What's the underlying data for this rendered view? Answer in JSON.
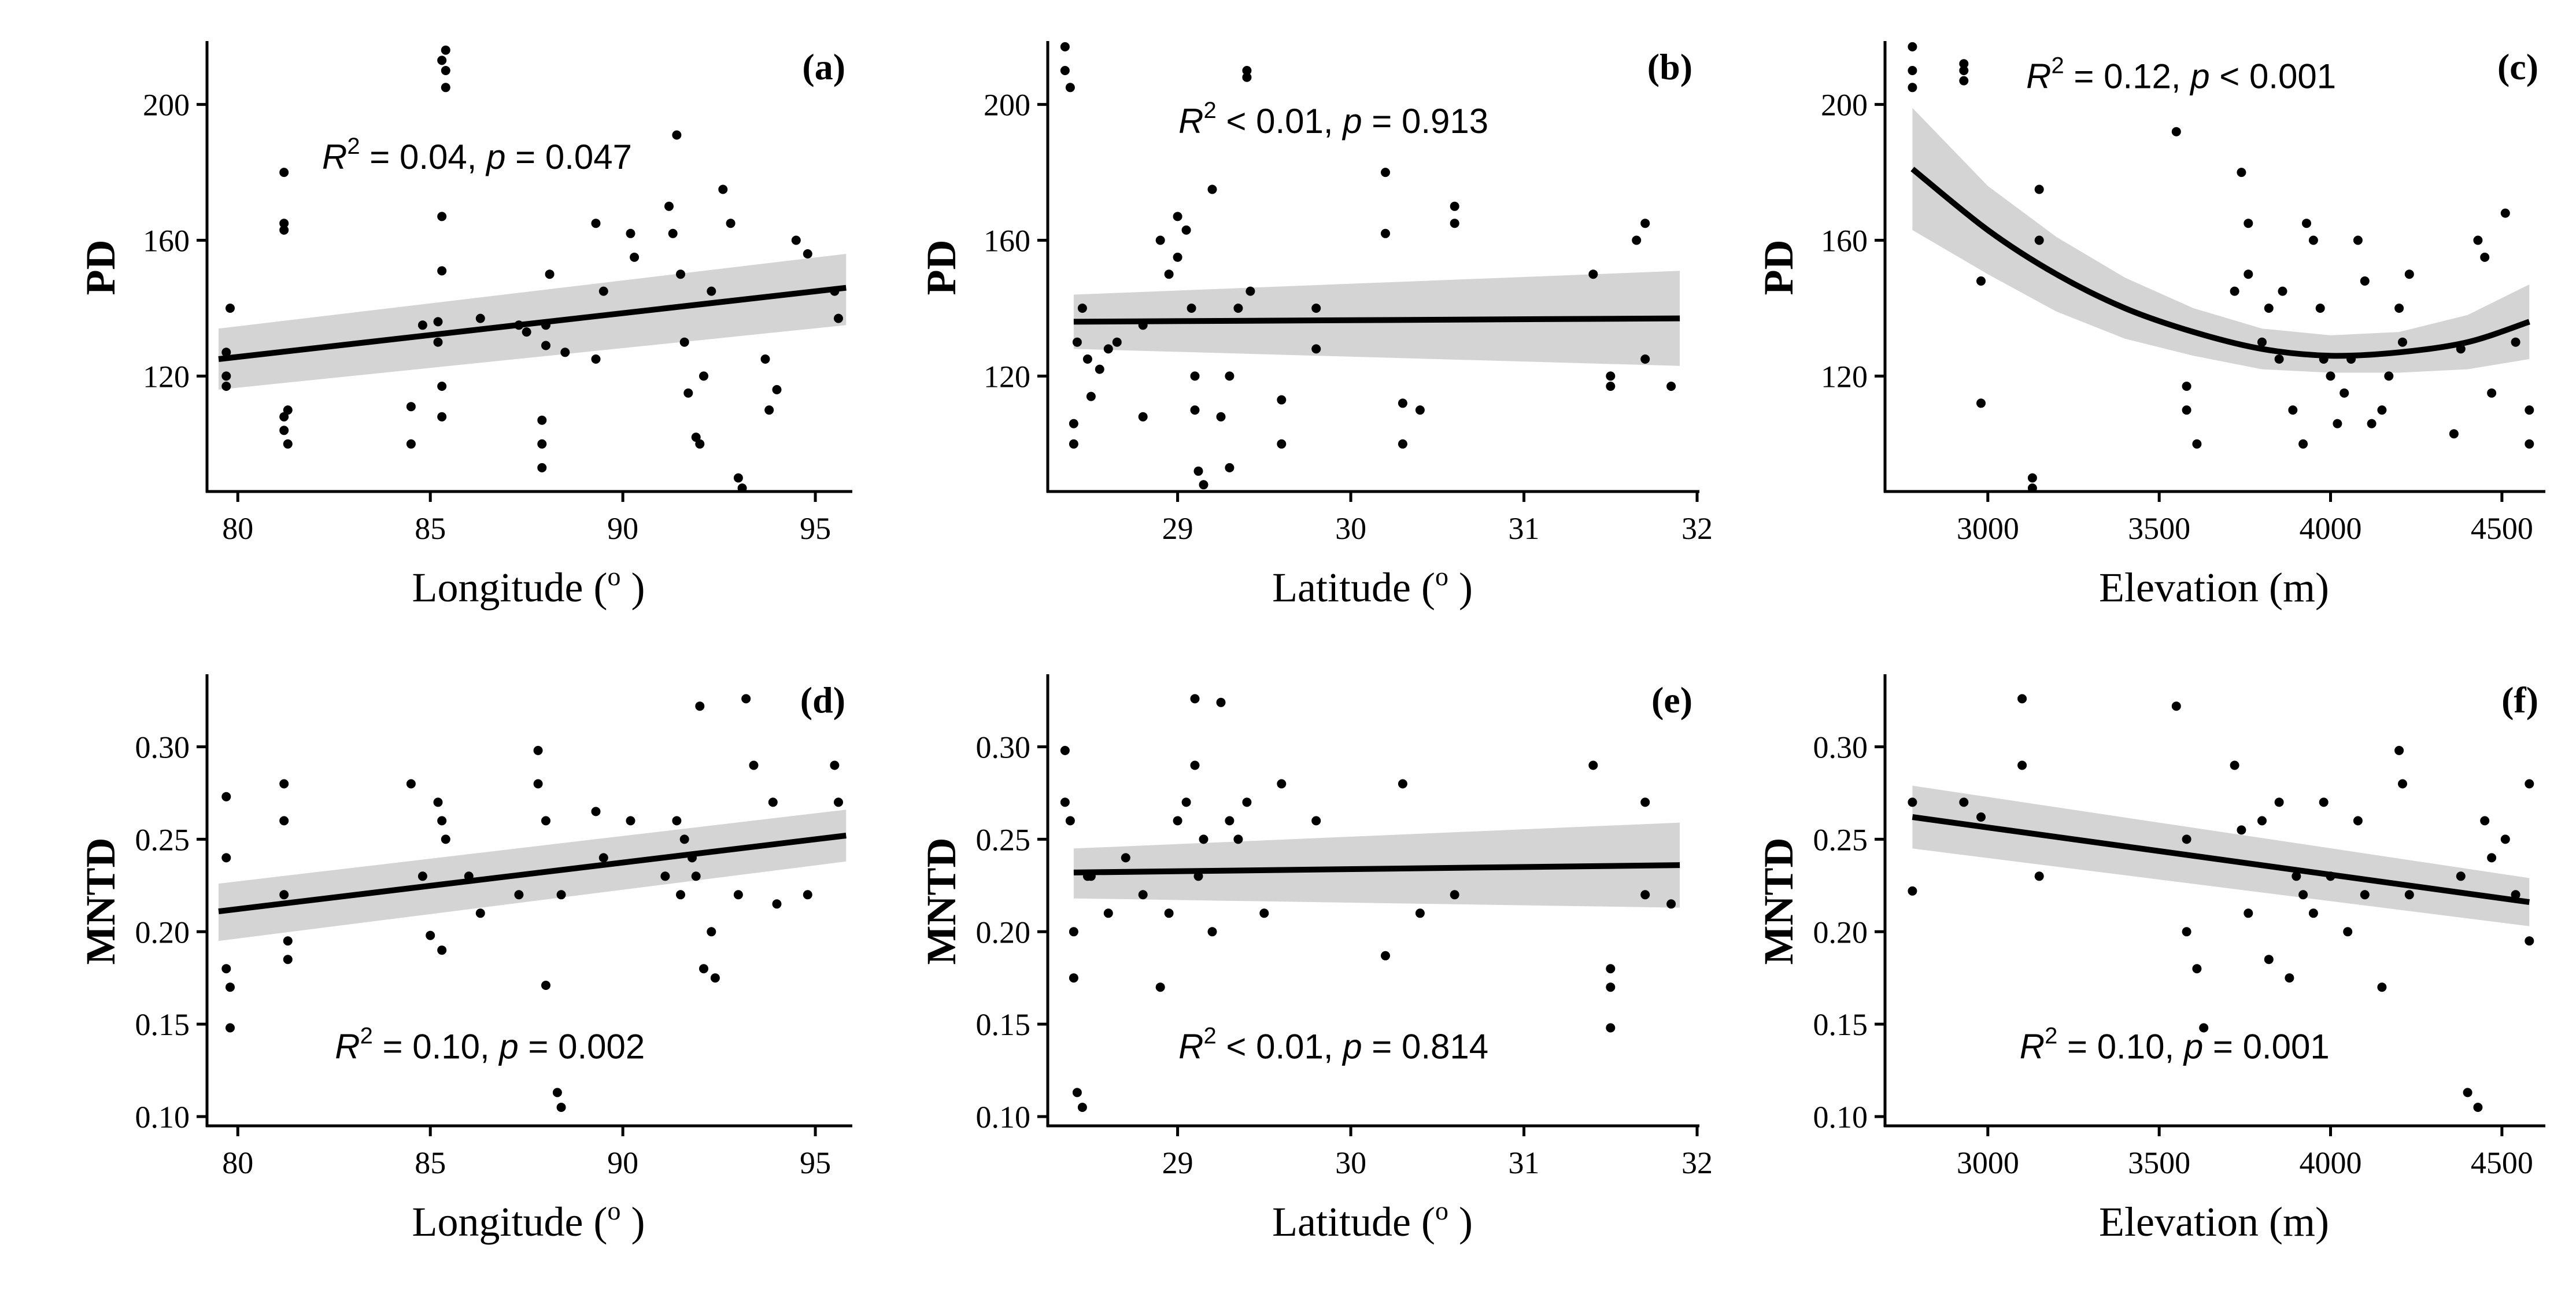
{
  "chart_data": [
    {
      "id": "a",
      "panel_label": "(a)",
      "type": "scatter",
      "xlabel": "Longitude",
      "x_unit": "o",
      "ylabel": "PD",
      "xlim": [
        79.2,
        95.9
      ],
      "ylim": [
        86,
        218
      ],
      "xticks": [
        80,
        85,
        90,
        95
      ],
      "yticks": [
        120,
        160,
        200
      ],
      "x": [
        79.7,
        79.7,
        79.7,
        79.8,
        81.2,
        81.2,
        81.2,
        81.2,
        81.2,
        81.3,
        81.3,
        84.5,
        84.5,
        84.8,
        85.2,
        85.2,
        85.3,
        85.3,
        85.3,
        85.3,
        85.3,
        85.4,
        85.4,
        85.4,
        86.3,
        87.3,
        87.5,
        87.9,
        87.9,
        87.9,
        88.0,
        88.0,
        88.1,
        88.5,
        89.3,
        89.3,
        89.5,
        90.2,
        90.3,
        91.2,
        91.3,
        91.4,
        91.5,
        91.6,
        91.7,
        91.9,
        92.0,
        92.1,
        92.3,
        92.6,
        92.8,
        93.0,
        93.1,
        93.7,
        93.8,
        94.0,
        94.5,
        94.8,
        95.5,
        95.6
      ],
      "y": [
        120,
        127,
        117,
        140,
        180,
        165,
        163,
        108,
        104,
        100,
        110,
        111,
        100,
        135,
        136,
        130,
        151,
        167,
        117,
        108,
        213,
        216,
        210,
        205,
        137,
        135,
        133,
        93,
        100,
        107,
        135,
        129,
        150,
        127,
        125,
        165,
        145,
        162,
        155,
        170,
        162,
        191,
        150,
        130,
        115,
        102,
        100,
        120,
        145,
        175,
        165,
        90,
        87,
        125,
        110,
        116,
        160,
        156,
        145,
        137
      ],
      "fit": {
        "x": [
          79.5,
          95.8
        ],
        "y": [
          125,
          146
        ],
        "ci_low": [
          116,
          135
        ],
        "ci_high": [
          134,
          156
        ]
      },
      "annotation": {
        "r2_symbol": "R",
        "r2_op": " = 0.04, ",
        "p_symbol": "p",
        "p_op": " = 0.047"
      }
    },
    {
      "id": "b",
      "panel_label": "(b)",
      "type": "scatter",
      "xlabel": "Latitude",
      "x_unit": "o",
      "ylabel": "PD",
      "xlim": [
        28.25,
        32.0
      ],
      "ylim": [
        86,
        218
      ],
      "xticks": [
        29,
        30,
        31,
        32
      ],
      "yticks": [
        120,
        160,
        200
      ],
      "x": [
        28.35,
        28.35,
        28.38,
        28.4,
        28.4,
        28.42,
        28.45,
        28.48,
        28.5,
        28.55,
        28.6,
        28.65,
        28.8,
        28.8,
        28.9,
        28.95,
        29.0,
        29.0,
        29.05,
        29.08,
        29.1,
        29.1,
        29.12,
        29.15,
        29.2,
        29.25,
        29.3,
        29.3,
        29.35,
        29.4,
        29.4,
        29.42,
        29.6,
        29.6,
        29.8,
        29.8,
        30.2,
        30.2,
        30.3,
        30.3,
        30.4,
        30.6,
        30.6,
        31.4,
        31.5,
        31.5,
        31.65,
        31.7,
        31.7,
        31.85
      ],
      "y": [
        217,
        210,
        205,
        100,
        106,
        130,
        140,
        125,
        114,
        122,
        128,
        130,
        135,
        108,
        160,
        150,
        167,
        155,
        163,
        140,
        120,
        110,
        92,
        88,
        175,
        108,
        120,
        93,
        140,
        210,
        208,
        145,
        100,
        113,
        128,
        140,
        180,
        162,
        112,
        100,
        110,
        165,
        170,
        150,
        117,
        120,
        160,
        165,
        125,
        117
      ],
      "fit": {
        "x": [
          28.4,
          31.9
        ],
        "y": [
          136,
          137
        ],
        "ci_low": [
          128,
          123
        ],
        "ci_high": [
          144,
          151
        ]
      },
      "annotation": {
        "r2_symbol": "R",
        "r2_op": " < 0.01, ",
        "p_symbol": "p",
        "p_op": " = 0.913"
      }
    },
    {
      "id": "c",
      "panel_label": "(c)",
      "type": "scatter",
      "xlabel": "Elevation",
      "x_unit": "m",
      "ylabel": "PD",
      "xlim": [
        2700,
        4620
      ],
      "ylim": [
        86,
        218
      ],
      "xticks": [
        3000,
        3500,
        4000,
        4500
      ],
      "yticks": [
        120,
        160,
        200
      ],
      "x": [
        2780,
        2780,
        2780,
        2930,
        2930,
        2930,
        2980,
        2980,
        3130,
        3130,
        3150,
        3150,
        3550,
        3580,
        3580,
        3610,
        3720,
        3740,
        3760,
        3760,
        3800,
        3820,
        3850,
        3860,
        3890,
        3920,
        3930,
        3950,
        3970,
        3980,
        4000,
        4020,
        4040,
        4060,
        4080,
        4100,
        4120,
        4150,
        4170,
        4200,
        4210,
        4230,
        4360,
        4380,
        4430,
        4450,
        4470,
        4510,
        4540,
        4580,
        4580
      ],
      "y": [
        217,
        210,
        205,
        210,
        207,
        212,
        148,
        112,
        90,
        87,
        175,
        160,
        192,
        110,
        117,
        100,
        145,
        180,
        150,
        165,
        130,
        140,
        125,
        145,
        110,
        100,
        165,
        160,
        140,
        125,
        120,
        106,
        115,
        125,
        160,
        148,
        106,
        110,
        120,
        140,
        130,
        150,
        103,
        128,
        160,
        155,
        115,
        168,
        130,
        110,
        100
      ],
      "fit": {
        "x": [
          2780,
          3000,
          3200,
          3400,
          3600,
          3800,
          4000,
          4200,
          4400,
          4580
        ],
        "y": [
          181,
          163,
          150,
          140,
          133,
          128,
          126,
          127,
          130,
          136
        ],
        "ci_low": [
          163,
          150,
          139,
          131,
          126,
          122,
          121,
          121,
          122,
          125
        ],
        "ci_high": [
          199,
          176,
          161,
          149,
          140,
          134,
          132,
          133,
          138,
          147
        ]
      },
      "annotation": {
        "r2_symbol": "R",
        "r2_op": " = 0.12, ",
        "p_symbol": "p",
        "p_op": " < 0.001"
      }
    },
    {
      "id": "d",
      "panel_label": "(d)",
      "type": "scatter",
      "xlabel": "Longitude",
      "x_unit": "o",
      "ylabel": "MNTD",
      "xlim": [
        79.2,
        95.9
      ],
      "ylim": [
        0.095,
        0.338
      ],
      "xticks": [
        80,
        85,
        90,
        95
      ],
      "yticks": [
        0.1,
        0.15,
        0.2,
        0.25,
        0.3
      ],
      "x": [
        79.7,
        79.7,
        79.7,
        79.8,
        79.8,
        81.2,
        81.2,
        81.2,
        81.3,
        81.3,
        84.5,
        84.8,
        85.0,
        85.2,
        85.3,
        85.3,
        85.4,
        86.0,
        86.3,
        87.3,
        87.8,
        87.8,
        88.0,
        88.0,
        88.3,
        88.4,
        88.4,
        89.3,
        89.5,
        90.2,
        91.1,
        91.4,
        91.5,
        91.6,
        91.8,
        91.9,
        92.0,
        92.1,
        92.3,
        92.4,
        93.0,
        93.2,
        93.4,
        93.9,
        94.0,
        94.8,
        95.5,
        95.6
      ],
      "y": [
        0.273,
        0.24,
        0.18,
        0.17,
        0.148,
        0.28,
        0.26,
        0.22,
        0.195,
        0.185,
        0.28,
        0.23,
        0.198,
        0.27,
        0.26,
        0.19,
        0.25,
        0.23,
        0.21,
        0.22,
        0.28,
        0.298,
        0.26,
        0.171,
        0.113,
        0.105,
        0.22,
        0.265,
        0.24,
        0.26,
        0.23,
        0.26,
        0.22,
        0.25,
        0.24,
        0.23,
        0.322,
        0.18,
        0.2,
        0.175,
        0.22,
        0.326,
        0.29,
        0.27,
        0.215,
        0.22,
        0.29,
        0.27
      ],
      "fit": {
        "x": [
          79.5,
          95.8
        ],
        "y": [
          0.211,
          0.252
        ],
        "ci_low": [
          0.195,
          0.238
        ],
        "ci_high": [
          0.226,
          0.266
        ]
      },
      "annotation": {
        "r2_symbol": "R",
        "r2_op": " = 0.10, ",
        "p_symbol": "p",
        "p_op": " = 0.002"
      }
    },
    {
      "id": "e",
      "panel_label": "(e)",
      "type": "scatter",
      "xlabel": "Latitude",
      "x_unit": "o",
      "ylabel": "MNTD",
      "xlim": [
        28.25,
        32.0
      ],
      "ylim": [
        0.095,
        0.338
      ],
      "xticks": [
        29,
        30,
        31,
        32
      ],
      "yticks": [
        0.1,
        0.15,
        0.2,
        0.25,
        0.3
      ],
      "x": [
        28.35,
        28.35,
        28.38,
        28.4,
        28.4,
        28.42,
        28.45,
        28.48,
        28.5,
        28.6,
        28.7,
        28.8,
        28.9,
        28.95,
        29.0,
        29.05,
        29.1,
        29.1,
        29.12,
        29.15,
        29.2,
        29.25,
        29.3,
        29.35,
        29.4,
        29.5,
        29.6,
        29.8,
        30.2,
        30.3,
        30.4,
        30.6,
        31.4,
        31.5,
        31.5,
        31.5,
        31.7,
        31.7,
        31.85
      ],
      "y": [
        0.298,
        0.27,
        0.26,
        0.175,
        0.2,
        0.113,
        0.105,
        0.23,
        0.23,
        0.21,
        0.24,
        0.22,
        0.17,
        0.21,
        0.26,
        0.27,
        0.326,
        0.29,
        0.23,
        0.25,
        0.2,
        0.324,
        0.26,
        0.25,
        0.27,
        0.21,
        0.28,
        0.26,
        0.187,
        0.28,
        0.21,
        0.22,
        0.29,
        0.18,
        0.17,
        0.148,
        0.22,
        0.27,
        0.215
      ],
      "fit": {
        "x": [
          28.4,
          31.9
        ],
        "y": [
          0.232,
          0.236
        ],
        "ci_low": [
          0.218,
          0.213
        ],
        "ci_high": [
          0.245,
          0.259
        ]
      },
      "annotation": {
        "r2_symbol": "R",
        "r2_op": " < 0.01, ",
        "p_symbol": "p",
        "p_op": " = 0.814"
      }
    },
    {
      "id": "f",
      "panel_label": "(f)",
      "type": "scatter",
      "xlabel": "Elevation",
      "x_unit": "m",
      "ylabel": "MNTD",
      "xlim": [
        2700,
        4620
      ],
      "ylim": [
        0.095,
        0.338
      ],
      "xticks": [
        3000,
        3500,
        4000,
        4500
      ],
      "yticks": [
        0.1,
        0.15,
        0.2,
        0.25,
        0.3
      ],
      "x": [
        2780,
        2780,
        2930,
        2980,
        3100,
        3100,
        3150,
        3550,
        3580,
        3580,
        3610,
        3630,
        3720,
        3740,
        3760,
        3800,
        3820,
        3850,
        3880,
        3900,
        3920,
        3950,
        3980,
        4000,
        4050,
        4080,
        4100,
        4150,
        4200,
        4210,
        4230,
        4380,
        4400,
        4430,
        4450,
        4470,
        4510,
        4540,
        4580,
        4580
      ],
      "y": [
        0.27,
        0.222,
        0.27,
        0.262,
        0.326,
        0.29,
        0.23,
        0.322,
        0.25,
        0.2,
        0.18,
        0.148,
        0.29,
        0.255,
        0.21,
        0.26,
        0.185,
        0.27,
        0.175,
        0.23,
        0.22,
        0.21,
        0.27,
        0.23,
        0.2,
        0.26,
        0.22,
        0.17,
        0.298,
        0.28,
        0.22,
        0.23,
        0.113,
        0.105,
        0.26,
        0.24,
        0.25,
        0.22,
        0.28,
        0.195
      ],
      "fit": {
        "x": [
          2780,
          4580
        ],
        "y": [
          0.262,
          0.216
        ],
        "ci_low": [
          0.245,
          0.203
        ],
        "ci_high": [
          0.279,
          0.229
        ]
      },
      "annotation": {
        "r2_symbol": "R",
        "r2_op": " = 0.10, ",
        "p_symbol": "p",
        "p_op": " = 0.001"
      }
    }
  ]
}
